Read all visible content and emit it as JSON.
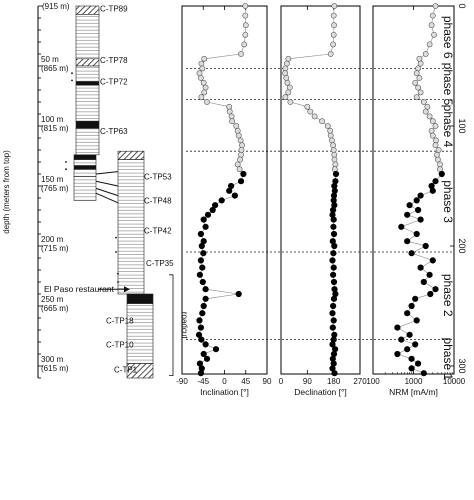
{
  "chart_data": {
    "type": "scatter",
    "y_axis": {
      "label": "depth (meters from top)",
      "ylim": [
        0,
        310
      ],
      "ticks": [
        {
          "value": 0,
          "label": "(915 m)"
        },
        {
          "value": 50,
          "label": "50 m",
          "elev": "(865 m)"
        },
        {
          "value": 100,
          "label": "100 m",
          "elev": "(815 m)"
        },
        {
          "value": 150,
          "label": "150 m",
          "elev": "(765 m)"
        },
        {
          "value": 200,
          "label": "200 m",
          "elev": "(715 m)"
        },
        {
          "value": 250,
          "label": "250 m",
          "elev": "(665 m)"
        },
        {
          "value": 300,
          "label": "300 m",
          "elev": "(615 m)"
        }
      ]
    },
    "right_axis_ticks": [
      "0",
      "100",
      "200",
      "300"
    ],
    "samples": [
      {
        "name": "C-TP89",
        "depth": 2
      },
      {
        "name": "C-TP78",
        "depth": 45
      },
      {
        "name": "C-TP72",
        "depth": 63
      },
      {
        "name": "C-TP63",
        "depth": 104
      },
      {
        "name": "C-TP53",
        "depth": 142
      },
      {
        "name": "C-TP48",
        "depth": 162
      },
      {
        "name": "C-TP42",
        "depth": 187
      },
      {
        "name": "C-TP35",
        "depth": 214
      },
      {
        "name": "C-TP18",
        "depth": 262
      },
      {
        "name": "C-TP10",
        "depth": 282
      },
      {
        "name": "C-TP1",
        "depth": 303
      }
    ],
    "annotations": {
      "restaurant": "El Paso restaurant",
      "roadcut": "roadcut"
    },
    "phase_boundaries": [
      52,
      78,
      121,
      205,
      278
    ],
    "phases": [
      {
        "label": "phase 6",
        "depth": 26
      },
      {
        "label": "phase 5",
        "depth": 65
      },
      {
        "label": "phase 4",
        "depth": 100
      },
      {
        "label": "phase 3",
        "depth": 163
      },
      {
        "label": "phase 2",
        "depth": 241
      },
      {
        "label": "phase 1",
        "depth": 294
      }
    ],
    "panels": [
      {
        "name": "inclination",
        "xlabel": "Inclination [°]",
        "xlim": [
          -90,
          90
        ],
        "ticks": [
          -90,
          -45,
          0,
          45,
          90
        ],
        "series": [
          {
            "style": "open",
            "points": [
              [
                44,
                0
              ],
              [
                44,
                8
              ],
              [
                45,
                16
              ],
              [
                44,
                24
              ],
              [
                42,
                32
              ],
              [
                35,
                40
              ],
              [
                -43,
                44
              ],
              [
                -49,
                48
              ],
              [
                -47,
                52
              ],
              [
                -53,
                56
              ],
              [
                -50,
                60
              ],
              [
                -44,
                64
              ],
              [
                -40,
                68
              ],
              [
                -43,
                72
              ],
              [
                -49,
                76
              ],
              [
                -37,
                80
              ],
              [
                10,
                84
              ],
              [
                11,
                88
              ],
              [
                15,
                92
              ],
              [
                16,
                96
              ],
              [
                25,
                100
              ],
              [
                28,
                104
              ],
              [
                30,
                108
              ],
              [
                34,
                112
              ],
              [
                37,
                116
              ],
              [
                36,
                120
              ],
              [
                35,
                124
              ],
              [
                33,
                128
              ],
              [
                28,
                132
              ],
              [
                32,
                136
              ]
            ]
          },
          {
            "style": "filled",
            "points": [
              [
                40,
                140
              ],
              [
                35,
                146
              ],
              [
                14,
                150
              ],
              [
                10,
                154
              ],
              [
                22,
                158
              ],
              [
                -6,
                162
              ],
              [
                -20,
                166
              ],
              [
                -25,
                170
              ],
              [
                -35,
                174
              ],
              [
                -44,
                178
              ],
              [
                -40,
                184
              ],
              [
                -50,
                190
              ],
              [
                -44,
                196
              ],
              [
                -48,
                200
              ],
              [
                -45,
                206
              ],
              [
                -50,
                212
              ],
              [
                -47,
                218
              ],
              [
                -52,
                224
              ],
              [
                -46,
                230
              ],
              [
                -40,
                236
              ],
              [
                30,
                240
              ],
              [
                -40,
                244
              ],
              [
                -44,
                250
              ],
              [
                -47,
                256
              ],
              [
                -53,
                262
              ],
              [
                -50,
                268
              ],
              [
                -54,
                274
              ],
              [
                -49,
                278
              ],
              [
                -40,
                282
              ],
              [
                -18,
                286
              ],
              [
                -44,
                290
              ],
              [
                -37,
                294
              ],
              [
                -52,
                298
              ],
              [
                -48,
                302
              ],
              [
                -50,
                306
              ]
            ]
          }
        ]
      },
      {
        "name": "declination",
        "xlabel": "Declination [°]",
        "xlim": [
          0,
          270
        ],
        "ticks": [
          0,
          90,
          180,
          270
        ],
        "series": [
          {
            "style": "open",
            "points": [
              [
                182,
                0
              ],
              [
                180,
                8
              ],
              [
                181,
                16
              ],
              [
                180,
                24
              ],
              [
                178,
                32
              ],
              [
                170,
                40
              ],
              [
                25,
                44
              ],
              [
                20,
                48
              ],
              [
                15,
                52
              ],
              [
                14,
                56
              ],
              [
                18,
                60
              ],
              [
                22,
                64
              ],
              [
                30,
                68
              ],
              [
                25,
                72
              ],
              [
                15,
                76
              ],
              [
                32,
                80
              ],
              [
                90,
                84
              ],
              [
                100,
                88
              ],
              [
                115,
                92
              ],
              [
                140,
                96
              ],
              [
                160,
                100
              ],
              [
                168,
                104
              ],
              [
                170,
                108
              ],
              [
                174,
                112
              ],
              [
                178,
                116
              ],
              [
                180,
                120
              ],
              [
                182,
                124
              ],
              [
                183,
                128
              ],
              [
                186,
                132
              ],
              [
                184,
                136
              ]
            ]
          },
          {
            "style": "filled",
            "points": [
              [
                188,
                140
              ],
              [
                186,
                146
              ],
              [
                182,
                150
              ],
              [
                184,
                154
              ],
              [
                181,
                158
              ],
              [
                180,
                162
              ],
              [
                182,
                166
              ],
              [
                178,
                170
              ],
              [
                176,
                174
              ],
              [
                180,
                178
              ],
              [
                179,
                184
              ],
              [
                181,
                190
              ],
              [
                177,
                196
              ],
              [
                182,
                200
              ],
              [
                179,
                206
              ],
              [
                176,
                212
              ],
              [
                180,
                218
              ],
              [
                178,
                224
              ],
              [
                181,
                230
              ],
              [
                183,
                236
              ],
              [
                186,
                240
              ],
              [
                181,
                244
              ],
              [
                178,
                250
              ],
              [
                176,
                256
              ],
              [
                180,
                262
              ],
              [
                177,
                268
              ],
              [
                182,
                274
              ],
              [
                180,
                278
              ],
              [
                176,
                282
              ],
              [
                185,
                286
              ],
              [
                181,
                290
              ],
              [
                177,
                294
              ],
              [
                180,
                298
              ],
              [
                176,
                302
              ],
              [
                183,
                306
              ]
            ]
          }
        ]
      },
      {
        "name": "nrm",
        "xlabel": "NRM [mA/m]",
        "xscale": "log",
        "xlim": [
          100,
          10000
        ],
        "ticks": [
          {
            "value": 100,
            "label": "100"
          },
          {
            "value": 1000,
            "label": "1000"
          },
          {
            "value": 10000,
            "label": "10000"
          }
        ],
        "series": [
          {
            "style": "open",
            "points": [
              [
                3500,
                0
              ],
              [
                3000,
                8
              ],
              [
                2800,
                16
              ],
              [
                3200,
                24
              ],
              [
                2500,
                32
              ],
              [
                2000,
                40
              ],
              [
                1400,
                44
              ],
              [
                1500,
                48
              ],
              [
                1300,
                52
              ],
              [
                1200,
                56
              ],
              [
                1400,
                60
              ],
              [
                1100,
                64
              ],
              [
                1300,
                68
              ],
              [
                1500,
                72
              ],
              [
                1200,
                76
              ],
              [
                1800,
                80
              ],
              [
                2200,
                84
              ],
              [
                2000,
                88
              ],
              [
                2500,
                92
              ],
              [
                3000,
                96
              ],
              [
                3500,
                100
              ],
              [
                2800,
                104
              ],
              [
                3000,
                108
              ],
              [
                3600,
                112
              ],
              [
                3500,
                116
              ],
              [
                4200,
                120
              ],
              [
                3800,
                124
              ],
              [
                4000,
                128
              ],
              [
                4500,
                132
              ],
              [
                4500,
                136
              ]
            ]
          },
          {
            "style": "filled",
            "points": [
              [
                5000,
                140
              ],
              [
                3500,
                146
              ],
              [
                2800,
                150
              ],
              [
                3000,
                154
              ],
              [
                1500,
                158
              ],
              [
                1200,
                162
              ],
              [
                800,
                166
              ],
              [
                1300,
                170
              ],
              [
                700,
                174
              ],
              [
                1500,
                178
              ],
              [
                500,
                184
              ],
              [
                1200,
                190
              ],
              [
                700,
                196
              ],
              [
                2000,
                200
              ],
              [
                900,
                206
              ],
              [
                3000,
                212
              ],
              [
                1500,
                218
              ],
              [
                2500,
                224
              ],
              [
                1800,
                230
              ],
              [
                3500,
                236
              ],
              [
                2600,
                240
              ],
              [
                1100,
                244
              ],
              [
                900,
                250
              ],
              [
                700,
                256
              ],
              [
                1200,
                262
              ],
              [
                400,
                268
              ],
              [
                800,
                274
              ],
              [
                500,
                278
              ],
              [
                1100,
                282
              ],
              [
                700,
                286
              ],
              [
                400,
                290
              ],
              [
                900,
                294
              ],
              [
                1300,
                298
              ],
              [
                900,
                302
              ],
              [
                1800,
                306
              ]
            ]
          }
        ]
      }
    ]
  }
}
